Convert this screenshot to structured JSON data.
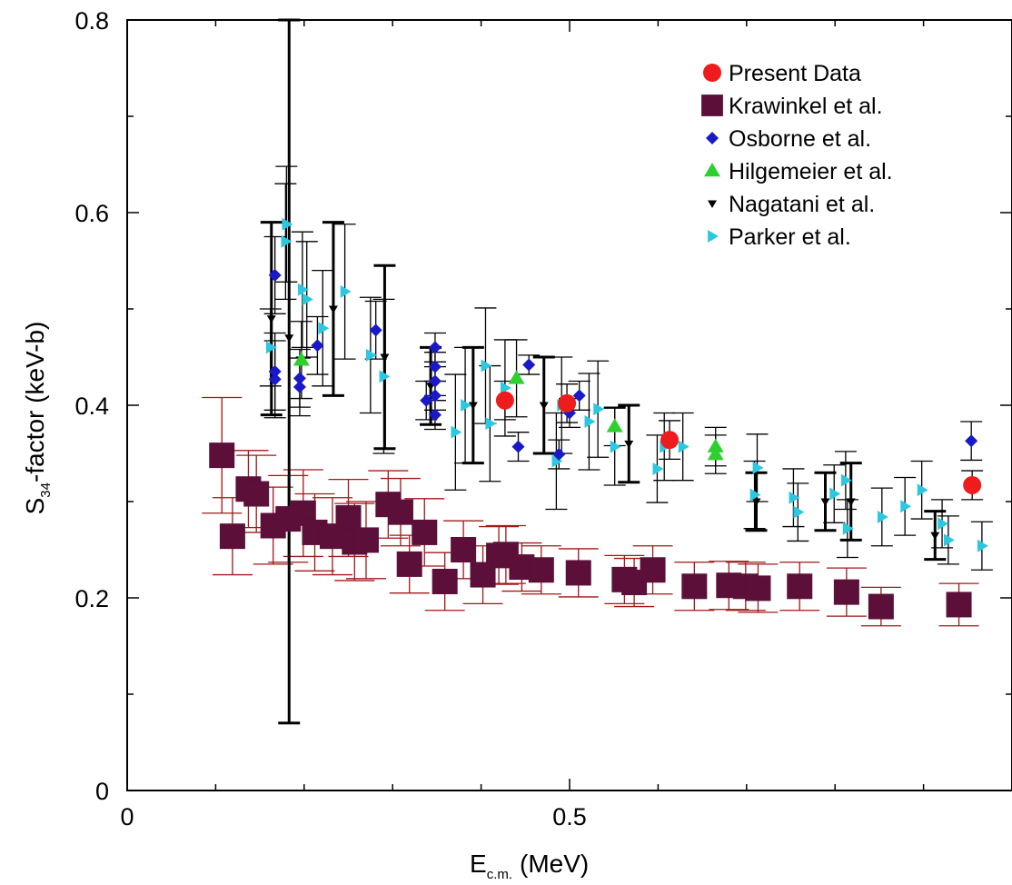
{
  "chart_data": {
    "type": "scatter",
    "xlabel": {
      "main": "E",
      "sub": "c.m.",
      "unit": "(MeV)"
    },
    "ylabel": {
      "main": "S",
      "sub": "34",
      "unit": "-factor (keV-b)"
    },
    "xlim": [
      0,
      1.0
    ],
    "ylim": [
      0,
      0.8
    ],
    "x_ticks": [
      {
        "value": 0,
        "label": "0"
      },
      {
        "value": 0.5,
        "label": "0.5"
      }
    ],
    "y_ticks": [
      {
        "value": 0,
        "label": "0"
      },
      {
        "value": 0.2,
        "label": "0.2"
      },
      {
        "value": 0.4,
        "label": "0.4"
      },
      {
        "value": 0.6,
        "label": "0.6"
      },
      {
        "value": 0.8,
        "label": "0.8"
      }
    ],
    "legend_position": "top-right",
    "series": [
      {
        "name": "Present Data",
        "marker": "circle",
        "color": "#ee1c1c",
        "errcolor": "#000000",
        "points": [
          {
            "x": 0.427,
            "y": 0.405,
            "e": 0.02
          },
          {
            "x": 0.497,
            "y": 0.402,
            "e": 0.02
          },
          {
            "x": 0.613,
            "y": 0.364,
            "e": 0.02
          },
          {
            "x": 0.955,
            "y": 0.317,
            "e": 0.015
          }
        ]
      },
      {
        "name": "Krawinkel et al.",
        "marker": "square",
        "color": "#5c0f38",
        "errcolor": "#a01818",
        "points": [
          {
            "x": 0.107,
            "y": 0.348,
            "e": 0.06
          },
          {
            "x": 0.119,
            "y": 0.264,
            "e": 0.04
          },
          {
            "x": 0.137,
            "y": 0.313,
            "e": 0.04
          },
          {
            "x": 0.146,
            "y": 0.308,
            "e": 0.04
          },
          {
            "x": 0.165,
            "y": 0.275,
            "e": 0.04
          },
          {
            "x": 0.182,
            "y": 0.282,
            "e": 0.045
          },
          {
            "x": 0.199,
            "y": 0.288,
            "e": 0.045
          },
          {
            "x": 0.212,
            "y": 0.268,
            "e": 0.04
          },
          {
            "x": 0.232,
            "y": 0.264,
            "e": 0.04
          },
          {
            "x": 0.25,
            "y": 0.283,
            "e": 0.04
          },
          {
            "x": 0.257,
            "y": 0.258,
            "e": 0.04
          },
          {
            "x": 0.27,
            "y": 0.26,
            "e": 0.04
          },
          {
            "x": 0.295,
            "y": 0.297,
            "e": 0.035
          },
          {
            "x": 0.309,
            "y": 0.289,
            "e": 0.035
          },
          {
            "x": 0.319,
            "y": 0.235,
            "e": 0.03
          },
          {
            "x": 0.336,
            "y": 0.268,
            "e": 0.035
          },
          {
            "x": 0.359,
            "y": 0.217,
            "e": 0.03
          },
          {
            "x": 0.38,
            "y": 0.25,
            "e": 0.03
          },
          {
            "x": 0.402,
            "y": 0.224,
            "e": 0.03
          },
          {
            "x": 0.42,
            "y": 0.244,
            "e": 0.03
          },
          {
            "x": 0.428,
            "y": 0.245,
            "e": 0.03
          },
          {
            "x": 0.446,
            "y": 0.232,
            "e": 0.025
          },
          {
            "x": 0.468,
            "y": 0.229,
            "e": 0.025
          },
          {
            "x": 0.51,
            "y": 0.226,
            "e": 0.025
          },
          {
            "x": 0.562,
            "y": 0.219,
            "e": 0.025
          },
          {
            "x": 0.573,
            "y": 0.216,
            "e": 0.025
          },
          {
            "x": 0.594,
            "y": 0.229,
            "e": 0.025
          },
          {
            "x": 0.641,
            "y": 0.212,
            "e": 0.025
          },
          {
            "x": 0.68,
            "y": 0.213,
            "e": 0.025
          },
          {
            "x": 0.699,
            "y": 0.212,
            "e": 0.025
          },
          {
            "x": 0.713,
            "y": 0.21,
            "e": 0.025
          },
          {
            "x": 0.76,
            "y": 0.212,
            "e": 0.025
          },
          {
            "x": 0.813,
            "y": 0.206,
            "e": 0.025
          },
          {
            "x": 0.852,
            "y": 0.191,
            "e": 0.02
          },
          {
            "x": 0.94,
            "y": 0.193,
            "e": 0.022
          }
        ]
      },
      {
        "name": "Osborne et al.",
        "marker": "diamond",
        "color": "#1919c8",
        "errcolor": "#000000",
        "points": [
          {
            "x": 0.167,
            "y": 0.535,
            "e": 0.04
          },
          {
            "x": 0.167,
            "y": 0.435,
            "e": 0.04
          },
          {
            "x": 0.167,
            "y": 0.427,
            "e": 0.04
          },
          {
            "x": 0.195,
            "y": 0.428,
            "e": 0.03
          },
          {
            "x": 0.195,
            "y": 0.419,
            "e": 0.03
          },
          {
            "x": 0.215,
            "y": 0.462,
            "e": 0.03
          },
          {
            "x": 0.281,
            "y": 0.478,
            "e": 0.03
          },
          {
            "x": 0.338,
            "y": 0.405,
            "e": 0.02
          },
          {
            "x": 0.348,
            "y": 0.46,
            "e": 0.015
          },
          {
            "x": 0.348,
            "y": 0.44,
            "e": 0.015
          },
          {
            "x": 0.348,
            "y": 0.425,
            "e": 0.015
          },
          {
            "x": 0.348,
            "y": 0.41,
            "e": 0.015
          },
          {
            "x": 0.348,
            "y": 0.39,
            "e": 0.015
          },
          {
            "x": 0.442,
            "y": 0.357,
            "e": 0.015
          },
          {
            "x": 0.454,
            "y": 0.442,
            "e": 0.01
          },
          {
            "x": 0.488,
            "y": 0.349,
            "e": 0.015
          },
          {
            "x": 0.5,
            "y": 0.392,
            "e": 0.015
          },
          {
            "x": 0.511,
            "y": 0.41,
            "e": 0.015
          },
          {
            "x": 0.954,
            "y": 0.363,
            "e": 0.02
          }
        ]
      },
      {
        "name": "Hilgemeier et al.",
        "marker": "triangle-up",
        "color": "#2ed02e",
        "errcolor": "#000000",
        "points": [
          {
            "x": 0.197,
            "y": 0.447,
            "e": 0.04
          },
          {
            "x": 0.44,
            "y": 0.428,
            "e": 0.04
          },
          {
            "x": 0.551,
            "y": 0.378,
            "e": 0.02
          },
          {
            "x": 0.665,
            "y": 0.357,
            "e": 0.02
          },
          {
            "x": 0.665,
            "y": 0.349,
            "e": 0.02
          }
        ]
      },
      {
        "name": "Nagatani et al.",
        "marker": "triangle-down",
        "color": "#000000",
        "errcolor": "#000000",
        "points": [
          {
            "x": 0.163,
            "y": 0.49,
            "e": 0.1
          },
          {
            "x": 0.183,
            "y": 0.47,
            "e": 0.4
          },
          {
            "x": 0.233,
            "y": 0.5,
            "e": 0.09
          },
          {
            "x": 0.291,
            "y": 0.45,
            "e": 0.095
          },
          {
            "x": 0.343,
            "y": 0.42,
            "e": 0.04
          },
          {
            "x": 0.391,
            "y": 0.4,
            "e": 0.06
          },
          {
            "x": 0.471,
            "y": 0.4,
            "e": 0.05
          },
          {
            "x": 0.567,
            "y": 0.36,
            "e": 0.04
          },
          {
            "x": 0.711,
            "y": 0.3,
            "e": 0.03
          },
          {
            "x": 0.789,
            "y": 0.3,
            "e": 0.03
          },
          {
            "x": 0.818,
            "y": 0.3,
            "e": 0.04
          },
          {
            "x": 0.913,
            "y": 0.265,
            "e": 0.025
          }
        ]
      },
      {
        "name": "Parker et al.",
        "marker": "triangle-right",
        "color": "#2cc8e0",
        "errcolor": "#000000",
        "points": [
          {
            "x": 0.162,
            "y": 0.46,
            "e": 0.04
          },
          {
            "x": 0.179,
            "y": 0.57,
            "e": 0.06
          },
          {
            "x": 0.18,
            "y": 0.588,
            "e": 0.06
          },
          {
            "x": 0.198,
            "y": 0.52,
            "e": 0.06
          },
          {
            "x": 0.203,
            "y": 0.51,
            "e": 0.06
          },
          {
            "x": 0.221,
            "y": 0.48,
            "e": 0.06
          },
          {
            "x": 0.246,
            "y": 0.518,
            "e": 0.07
          },
          {
            "x": 0.275,
            "y": 0.452,
            "e": 0.06
          },
          {
            "x": 0.29,
            "y": 0.43,
            "e": 0.08
          },
          {
            "x": 0.371,
            "y": 0.372,
            "e": 0.06
          },
          {
            "x": 0.382,
            "y": 0.4,
            "e": 0.06
          },
          {
            "x": 0.405,
            "y": 0.441,
            "e": 0.06
          },
          {
            "x": 0.41,
            "y": 0.381,
            "e": 0.06
          },
          {
            "x": 0.427,
            "y": 0.418,
            "e": 0.05
          },
          {
            "x": 0.485,
            "y": 0.342,
            "e": 0.05
          },
          {
            "x": 0.491,
            "y": 0.4,
            "e": 0.05
          },
          {
            "x": 0.522,
            "y": 0.383,
            "e": 0.05
          },
          {
            "x": 0.532,
            "y": 0.396,
            "e": 0.05
          },
          {
            "x": 0.551,
            "y": 0.357,
            "e": 0.04
          },
          {
            "x": 0.599,
            "y": 0.334,
            "e": 0.035
          },
          {
            "x": 0.607,
            "y": 0.357,
            "e": 0.035
          },
          {
            "x": 0.628,
            "y": 0.357,
            "e": 0.035
          },
          {
            "x": 0.709,
            "y": 0.307,
            "e": 0.035
          },
          {
            "x": 0.712,
            "y": 0.335,
            "e": 0.035
          },
          {
            "x": 0.753,
            "y": 0.304,
            "e": 0.03
          },
          {
            "x": 0.758,
            "y": 0.289,
            "e": 0.03
          },
          {
            "x": 0.799,
            "y": 0.308,
            "e": 0.03
          },
          {
            "x": 0.812,
            "y": 0.322,
            "e": 0.03
          },
          {
            "x": 0.814,
            "y": 0.272,
            "e": 0.03
          },
          {
            "x": 0.853,
            "y": 0.284,
            "e": 0.03
          },
          {
            "x": 0.879,
            "y": 0.295,
            "e": 0.03
          },
          {
            "x": 0.898,
            "y": 0.312,
            "e": 0.03
          },
          {
            "x": 0.921,
            "y": 0.277,
            "e": 0.025
          },
          {
            "x": 0.928,
            "y": 0.26,
            "e": 0.025
          },
          {
            "x": 0.966,
            "y": 0.254,
            "e": 0.025
          }
        ]
      }
    ]
  }
}
